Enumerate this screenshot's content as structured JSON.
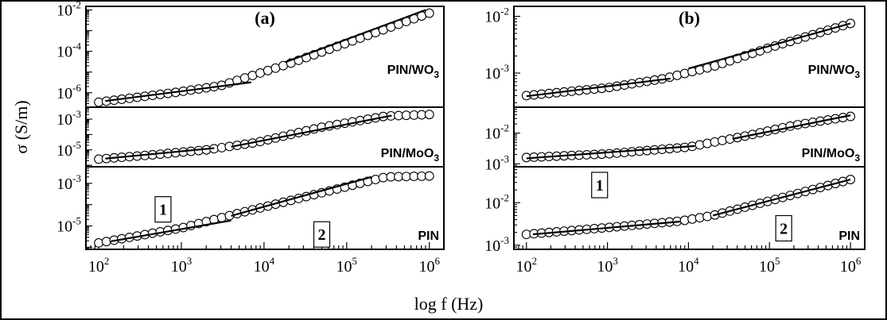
{
  "chart_data": [
    {
      "panel_label": "(a)",
      "type": "scatter",
      "xscale": "log",
      "xlim": [
        70,
        1500000
      ],
      "x_ticks": [
        {
          "base": "10",
          "exp": "2"
        },
        {
          "base": "10",
          "exp": "3"
        },
        {
          "base": "10",
          "exp": "4"
        },
        {
          "base": "10",
          "exp": "5"
        },
        {
          "base": "10",
          "exp": "6"
        }
      ],
      "region_labels": [
        {
          "text": "1",
          "f": 600,
          "sub": 2,
          "v": 6e-05
        },
        {
          "text": "2",
          "f": 50000,
          "sub": 2,
          "v": 4e-06
        }
      ],
      "subplots": [
        {
          "name": "PIN/WO",
          "name_sub": "3",
          "yscale": "log",
          "ylim": [
            2e-07,
            0.015
          ],
          "y_ticks": [
            {
              "base": "10",
              "exp": "-2",
              "value": 0.01
            },
            {
              "base": "10",
              "exp": "-4",
              "value": 0.0001
            },
            {
              "base": "10",
              "exp": "-6",
              "value": 1e-06
            }
          ],
          "points": [
            [
              100,
              3.5e-07
            ],
            [
              800,
              1e-06
            ],
            [
              3000,
              2.2e-06
            ],
            [
              20000,
              2.5e-05
            ],
            [
              1000000,
              0.007
            ]
          ],
          "fit_segments": [
            {
              "x": [
                120,
                7000
              ],
              "y": [
                4e-07,
                3.2e-06
              ]
            },
            {
              "x": [
                18000,
                900000
              ],
              "y": [
                3e-05,
                0.01
              ]
            }
          ]
        },
        {
          "name": "PIN/MoO",
          "name_sub": "3",
          "yscale": "log",
          "ylim": [
            8e-07,
            0.006
          ],
          "y_ticks": [
            {
              "base": "10",
              "exp": "-3",
              "value": 0.001
            },
            {
              "base": "10",
              "exp": "-5",
              "value": 1e-05
            }
          ],
          "points": [
            [
              100,
              2.5e-06
            ],
            [
              500,
              5e-06
            ],
            [
              2000,
              1e-05
            ],
            [
              8000,
              3e-05
            ],
            [
              50000,
              0.0003
            ],
            [
              300000,
              0.0016
            ],
            [
              1000000,
              0.002
            ]
          ],
          "fit_segments": [
            {
              "x": [
                120,
                2500
              ],
              "y": [
                2.7e-06,
                1.3e-05
              ]
            },
            {
              "x": [
                4000,
                350000
              ],
              "y": [
                1.6e-05,
                0.0017
              ]
            }
          ]
        },
        {
          "name": "PIN",
          "name_sub": "",
          "yscale": "log",
          "ylim": [
            8e-07,
            0.006
          ],
          "y_ticks": [
            {
              "base": "10",
              "exp": "-3",
              "value": 0.001
            },
            {
              "base": "10",
              "exp": "-5",
              "value": 1e-05
            }
          ],
          "points": [
            [
              100,
              1.6e-06
            ],
            [
              1000,
              8e-06
            ],
            [
              5000,
              4e-05
            ],
            [
              20000,
              0.00015
            ],
            [
              100000,
              0.0007
            ],
            [
              300000,
              0.002
            ],
            [
              1000000,
              0.0022
            ]
          ],
          "fit_segments": [
            {
              "x": [
                140,
                4000
              ],
              "y": [
                1.9e-06,
                1.8e-05
              ]
            },
            {
              "x": [
                4000,
                200000
              ],
              "y": [
                3e-05,
                0.002
              ]
            }
          ]
        }
      ]
    },
    {
      "panel_label": "(b)",
      "type": "scatter",
      "xscale": "log",
      "xlim": [
        70,
        1500000
      ],
      "x_ticks": [
        {
          "base": "10",
          "exp": "2"
        },
        {
          "base": "10",
          "exp": "3"
        },
        {
          "base": "10",
          "exp": "4"
        },
        {
          "base": "10",
          "exp": "5"
        },
        {
          "base": "10",
          "exp": "6"
        }
      ],
      "region_labels": [
        {
          "text": "1",
          "f": 800,
          "sub": 2,
          "v": 0.026
        },
        {
          "text": "2",
          "f": 150000,
          "sub": 2,
          "v": 0.0025
        }
      ],
      "subplots": [
        {
          "name": "PIN/WO",
          "name_sub": "3",
          "yscale": "log",
          "ylim": [
            0.00025,
            0.015
          ],
          "y_ticks": [
            {
              "base": "10",
              "exp": "-2",
              "value": 0.01
            },
            {
              "base": "10",
              "exp": "-3",
              "value": 0.001
            }
          ],
          "points": [
            [
              100,
              0.0004
            ],
            [
              1000,
              0.00055
            ],
            [
              5000,
              0.0008
            ],
            [
              20000,
              0.0013
            ],
            [
              100000,
              0.0028
            ],
            [
              1000000,
              0.0075
            ]
          ],
          "fit_segments": [
            {
              "x": [
                100,
                6000
              ],
              "y": [
                0.00039,
                0.0008
              ]
            },
            {
              "x": [
                10000,
                1000000
              ],
              "y": [
                0.0012,
                0.0075
              ]
            }
          ]
        },
        {
          "name": "PIN/MoO",
          "name_sub": "3",
          "yscale": "log",
          "ylim": [
            0.0008,
            0.07
          ],
          "y_ticks": [
            {
              "base": "10",
              "exp": "-2",
              "value": 0.01
            },
            {
              "base": "10",
              "exp": "-3",
              "value": 0.001
            }
          ],
          "points": [
            [
              100,
              0.0016
            ],
            [
              1000,
              0.0021
            ],
            [
              10000,
              0.0035
            ],
            [
              50000,
              0.008
            ],
            [
              200000,
              0.018
            ],
            [
              1000000,
              0.035
            ]
          ],
          "fit_segments": [
            {
              "x": [
                100,
                12000
              ],
              "y": [
                0.0015,
                0.0038
              ]
            },
            {
              "x": [
                35000,
                1000000
              ],
              "y": [
                0.0065,
                0.038
              ]
            }
          ]
        },
        {
          "name": "PIN",
          "name_sub": "",
          "yscale": "log",
          "ylim": [
            0.0008,
            0.07
          ],
          "y_ticks": [
            {
              "base": "10",
              "exp": "-2",
              "value": 0.01
            },
            {
              "base": "10",
              "exp": "-3",
              "value": 0.001
            }
          ],
          "points": [
            [
              100,
              0.0018
            ],
            [
              1000,
              0.0026
            ],
            [
              8000,
              0.0037
            ],
            [
              20000,
              0.005
            ],
            [
              100000,
              0.011
            ],
            [
              1000000,
              0.035
            ]
          ],
          "fit_segments": [
            {
              "x": [
                120,
                8000
              ],
              "y": [
                0.0018,
                0.0036
              ]
            },
            {
              "x": [
                20000,
                1000000
              ],
              "y": [
                0.005,
                0.035
              ]
            }
          ]
        }
      ]
    }
  ],
  "xlabel": "log f (Hz)",
  "ylabel": "σ (S/m)"
}
